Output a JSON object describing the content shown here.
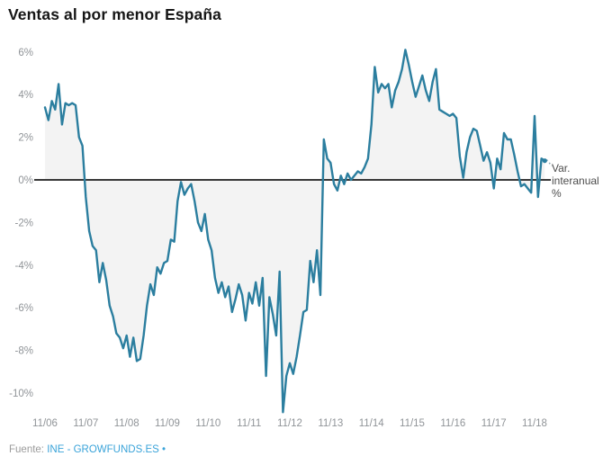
{
  "title": "Ventas al por menor España",
  "legend": {
    "line1": "Var.",
    "line2": "interanual",
    "line3": "%"
  },
  "footer": {
    "prefix": "Fuente:",
    "link": "INE - GROWFUNDS.ES",
    "bullet": "•"
  },
  "colors": {
    "line": "#2b7e9f",
    "area_fill": "#f3f3f3",
    "zero_line": "#383838",
    "tick_text": "#909498",
    "legend_text": "#4d4d4d",
    "link": "#3aa3d9",
    "title": "#161616",
    "connector": "#8ca6b0",
    "background": "#ffffff"
  },
  "chart_data": {
    "type": "area",
    "title": "Ventas al por menor España",
    "xlabel": "",
    "ylabel": "Var. interanual %",
    "grid": false,
    "legend_position": "right-of-last-point",
    "ylim": [
      -11.5,
      6.5
    ],
    "y_ticks": [
      6,
      4,
      2,
      0,
      -2,
      -4,
      -6,
      -8,
      -10
    ],
    "y_tick_labels": [
      "6%",
      "4%",
      "2%",
      "0%",
      "-2%",
      "-4%",
      "-6%",
      "-8%",
      "-10%"
    ],
    "x_tick_labels": [
      "11/06",
      "11/07",
      "11/08",
      "11/09",
      "11/10",
      "11/11",
      "11/12",
      "11/13",
      "11/14",
      "11/15",
      "11/16",
      "11/17",
      "11/18"
    ],
    "series": [
      {
        "name": "Var. interanual %",
        "frequency": "monthly",
        "start_month": "2006-11",
        "end_month": "2019-02",
        "values": [
          3.4,
          2.8,
          3.7,
          3.3,
          4.5,
          2.6,
          3.6,
          3.5,
          3.6,
          3.5,
          2.0,
          1.6,
          -0.8,
          -2.4,
          -3.1,
          -3.3,
          -4.8,
          -3.9,
          -4.7,
          -5.9,
          -6.4,
          -7.2,
          -7.4,
          -7.9,
          -7.3,
          -8.3,
          -7.4,
          -8.5,
          -8.4,
          -7.3,
          -5.9,
          -4.9,
          -5.4,
          -4.1,
          -4.4,
          -3.9,
          -3.8,
          -2.8,
          -2.9,
          -1.0,
          -0.1,
          -0.7,
          -0.4,
          -0.2,
          -1.0,
          -2.0,
          -2.4,
          -1.6,
          -2.8,
          -3.3,
          -4.6,
          -5.3,
          -4.8,
          -5.5,
          -5.0,
          -6.2,
          -5.6,
          -4.9,
          -5.4,
          -6.6,
          -5.3,
          -5.8,
          -4.8,
          -5.9,
          -4.6,
          -9.2,
          -5.5,
          -6.3,
          -7.3,
          -4.3,
          -10.9,
          -9.2,
          -8.6,
          -9.1,
          -8.3,
          -7.3,
          -6.2,
          -6.1,
          -3.8,
          -4.8,
          -3.3,
          -5.4,
          1.9,
          1.0,
          0.8,
          -0.2,
          -0.5,
          0.2,
          -0.2,
          0.3,
          0.0,
          0.2,
          0.4,
          0.3,
          0.6,
          1.0,
          2.6,
          5.3,
          4.1,
          4.5,
          4.3,
          4.5,
          3.4,
          4.2,
          4.6,
          5.2,
          6.1,
          5.4,
          4.6,
          3.9,
          4.4,
          4.9,
          4.2,
          3.7,
          4.6,
          5.2,
          3.3,
          3.2,
          3.1,
          3.0,
          3.1,
          2.9,
          1.1,
          0.1,
          1.3,
          2.0,
          2.4,
          2.3,
          1.6,
          0.9,
          1.3,
          0.8,
          -0.4,
          1.0,
          0.5,
          2.2,
          1.9,
          1.9,
          1.2,
          0.4,
          -0.3,
          -0.2,
          -0.4,
          -0.6,
          3.0,
          -0.8,
          1.0,
          0.9
        ]
      }
    ]
  }
}
